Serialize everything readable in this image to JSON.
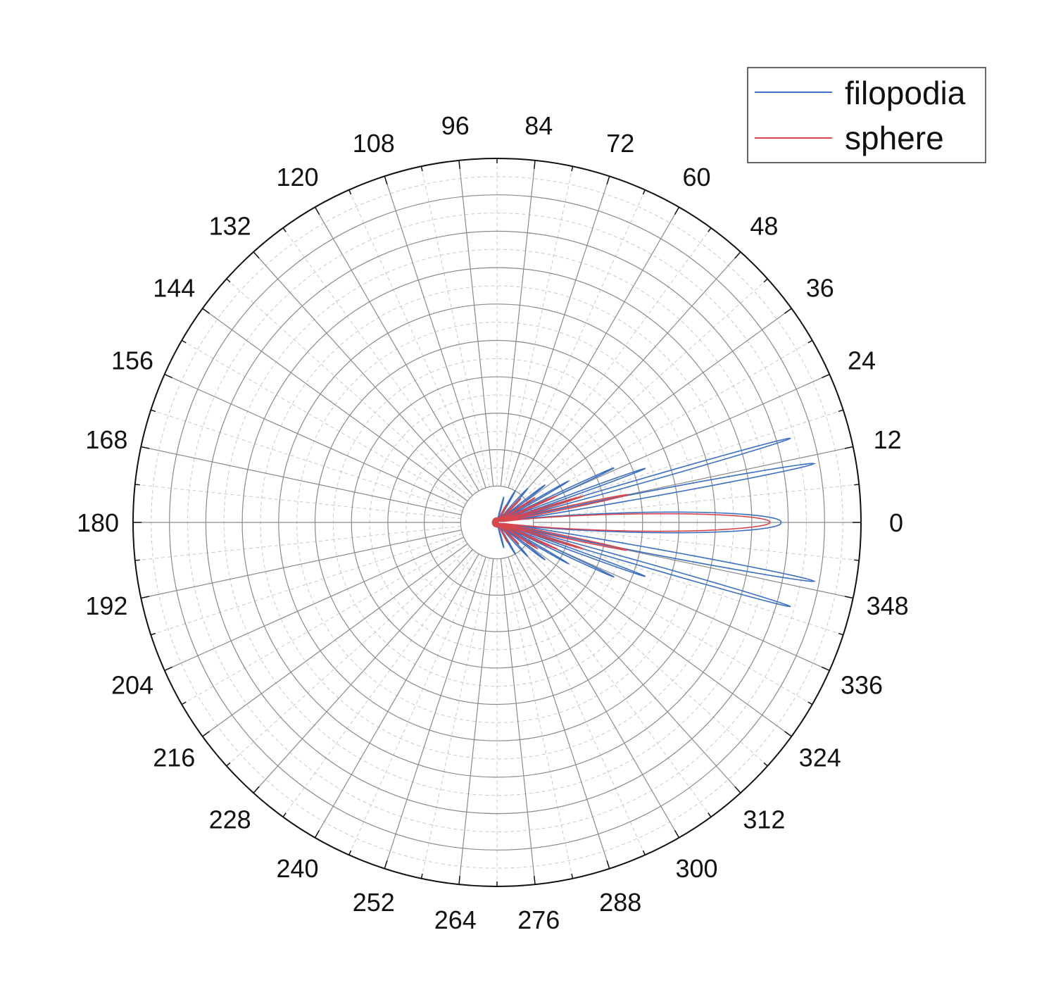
{
  "chart_data": {
    "type": "polar-line",
    "title": "",
    "angle_unit": "degrees",
    "angle_tick_labels": [
      "0",
      "12",
      "24",
      "36",
      "48",
      "60",
      "72",
      "84",
      "96",
      "108",
      "120",
      "132",
      "144",
      "156",
      "168",
      "180",
      "192",
      "204",
      "216",
      "228",
      "240",
      "252",
      "264",
      "276",
      "288",
      "300",
      "312",
      "324",
      "336",
      "348"
    ],
    "angle_ticks": [
      0,
      12,
      24,
      36,
      48,
      60,
      72,
      84,
      96,
      108,
      120,
      132,
      144,
      156,
      168,
      180,
      192,
      204,
      216,
      228,
      240,
      252,
      264,
      276,
      288,
      300,
      312,
      324,
      336,
      348
    ],
    "radial_range": [
      0,
      1
    ],
    "radial_rings": [
      0.1,
      0.2,
      0.3,
      0.4,
      0.5,
      0.6,
      0.7,
      0.8,
      0.9
    ],
    "grid": true,
    "legend_position": "top-right",
    "series": [
      {
        "name": "filopodia",
        "color": "#3a6fc4",
        "lobes": [
          {
            "center_deg": 0,
            "peak_r": 0.78,
            "half_width_deg": 5.0
          },
          {
            "center_deg": 10.5,
            "peak_r": 0.88,
            "half_width_deg": 1.3
          },
          {
            "center_deg": -10.5,
            "peak_r": 0.88,
            "half_width_deg": 1.3
          },
          {
            "center_deg": 16.0,
            "peak_r": 0.83,
            "half_width_deg": 1.0
          },
          {
            "center_deg": -16.0,
            "peak_r": 0.83,
            "half_width_deg": 1.0
          },
          {
            "center_deg": 20.0,
            "peak_r": 0.43,
            "half_width_deg": 1.0
          },
          {
            "center_deg": -20.0,
            "peak_r": 0.43,
            "half_width_deg": 1.0
          },
          {
            "center_deg": 25.0,
            "peak_r": 0.35,
            "half_width_deg": 1.0
          },
          {
            "center_deg": -25.0,
            "peak_r": 0.35,
            "half_width_deg": 1.0
          },
          {
            "center_deg": 30.0,
            "peak_r": 0.22,
            "half_width_deg": 1.2
          },
          {
            "center_deg": -30.0,
            "peak_r": 0.22,
            "half_width_deg": 1.2
          },
          {
            "center_deg": 38.0,
            "peak_r": 0.16,
            "half_width_deg": 1.5
          },
          {
            "center_deg": -38.0,
            "peak_r": 0.16,
            "half_width_deg": 1.5
          },
          {
            "center_deg": 48.0,
            "peak_r": 0.12,
            "half_width_deg": 2.0
          },
          {
            "center_deg": -48.0,
            "peak_r": 0.12,
            "half_width_deg": 2.0
          },
          {
            "center_deg": 60.0,
            "peak_r": 0.09,
            "half_width_deg": 2.0
          },
          {
            "center_deg": -60.0,
            "peak_r": 0.09,
            "half_width_deg": 2.0
          },
          {
            "center_deg": 75.0,
            "peak_r": 0.06,
            "half_width_deg": 2.0
          },
          {
            "center_deg": -75.0,
            "peak_r": 0.06,
            "half_width_deg": 2.0
          }
        ]
      },
      {
        "name": "sphere",
        "color": "#d9464c",
        "lobes": [
          {
            "center_deg": 0,
            "peak_r": 0.74,
            "half_width_deg": 4.5
          },
          {
            "center_deg": 12.0,
            "peak_r": 0.36,
            "half_width_deg": 1.3
          },
          {
            "center_deg": -12.0,
            "peak_r": 0.36,
            "half_width_deg": 1.3
          },
          {
            "center_deg": 17.0,
            "peak_r": 0.24,
            "half_width_deg": 1.2
          },
          {
            "center_deg": -17.0,
            "peak_r": 0.24,
            "half_width_deg": 1.2
          },
          {
            "center_deg": 24.0,
            "peak_r": 0.17,
            "half_width_deg": 1.3
          },
          {
            "center_deg": -24.0,
            "peak_r": 0.17,
            "half_width_deg": 1.3
          },
          {
            "center_deg": 33.0,
            "peak_r": 0.12,
            "half_width_deg": 1.5
          },
          {
            "center_deg": -33.0,
            "peak_r": 0.12,
            "half_width_deg": 1.5
          },
          {
            "center_deg": 45.0,
            "peak_r": 0.08,
            "half_width_deg": 2.0
          },
          {
            "center_deg": -45.0,
            "peak_r": 0.08,
            "half_width_deg": 2.0
          },
          {
            "center_deg": 62.0,
            "peak_r": 0.05,
            "half_width_deg": 2.0
          },
          {
            "center_deg": -62.0,
            "peak_r": 0.05,
            "half_width_deg": 2.0
          }
        ]
      }
    ]
  },
  "legend": {
    "items": [
      {
        "label": "filopodia",
        "color": "#3a6fc4"
      },
      {
        "label": "sphere",
        "color": "#d9464c"
      }
    ]
  }
}
